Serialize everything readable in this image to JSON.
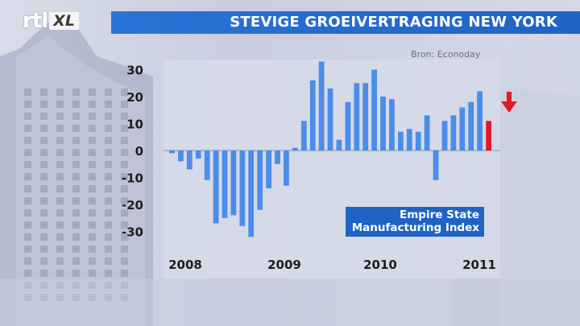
{
  "header": {
    "logo_text": "rtl",
    "logo_badge": "XL",
    "title": "STEVIGE GROEIVERTRAGING NEW YORK"
  },
  "source_label": "Bron: Econoday",
  "colors": {
    "bar": "#4b8de8",
    "bar_highlight": "#e0192a",
    "banner": "#2b73d6",
    "arrow": "#e0192a"
  },
  "chart_data": {
    "type": "bar",
    "legend": [
      "Empire State",
      "Manufacturing Index"
    ],
    "ylim": [
      -33,
      33
    ],
    "y_ticks": [
      30,
      20,
      10,
      0,
      -10,
      -20,
      -30
    ],
    "x_tick_labels": [
      "2008",
      "2009",
      "2010",
      "2011"
    ],
    "values": [
      -1,
      -4,
      -7,
      -3,
      -11,
      -27,
      -25,
      -24,
      -28,
      -32,
      -22,
      -14,
      -5,
      -13,
      1,
      11,
      26,
      33,
      23,
      4,
      18,
      25,
      25,
      30,
      20,
      19,
      7,
      8,
      7,
      13,
      -11,
      11,
      13,
      16,
      18,
      22,
      11
    ],
    "highlight_last": true,
    "indicator": "down-arrow"
  }
}
